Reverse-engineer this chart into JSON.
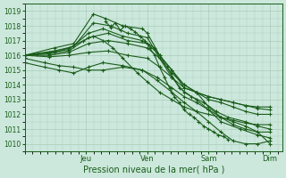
{
  "xlabel": "Pression niveau de la mer( hPa )",
  "bg_color": "#cce8dc",
  "grid_color": "#aaccbb",
  "line_color": "#1a5c1a",
  "ylim": [
    1009.5,
    1019.5
  ],
  "xlim": [
    0.0,
    1.05
  ],
  "yticks": [
    1010,
    1011,
    1012,
    1013,
    1014,
    1015,
    1016,
    1017,
    1018,
    1019
  ],
  "day_labels": [
    "Jeu",
    "Ven",
    "Sam",
    "Dim"
  ],
  "day_positions": [
    0.25,
    0.5,
    0.75,
    1.0
  ],
  "members": [
    {
      "pts": [
        [
          0.0,
          1016.0
        ],
        [
          0.12,
          1016.5
        ],
        [
          0.2,
          1016.8
        ],
        [
          0.28,
          1018.8
        ],
        [
          0.33,
          1018.5
        ],
        [
          0.4,
          1018.0
        ],
        [
          0.48,
          1017.8
        ],
        [
          0.5,
          1017.5
        ],
        [
          0.55,
          1016.0
        ],
        [
          0.6,
          1015.0
        ],
        [
          0.65,
          1013.8
        ],
        [
          0.7,
          1013.5
        ],
        [
          0.75,
          1012.5
        ],
        [
          0.8,
          1011.8
        ],
        [
          0.85,
          1011.5
        ],
        [
          0.9,
          1011.2
        ],
        [
          0.95,
          1010.8
        ],
        [
          1.0,
          1010.0
        ]
      ]
    },
    {
      "pts": [
        [
          0.0,
          1016.0
        ],
        [
          0.12,
          1016.3
        ],
        [
          0.2,
          1016.6
        ],
        [
          0.28,
          1018.2
        ],
        [
          0.35,
          1018.0
        ],
        [
          0.42,
          1017.5
        ],
        [
          0.5,
          1017.2
        ],
        [
          0.55,
          1015.8
        ],
        [
          0.6,
          1014.5
        ],
        [
          0.65,
          1013.5
        ],
        [
          0.7,
          1013.0
        ],
        [
          0.75,
          1012.3
        ],
        [
          0.8,
          1011.5
        ],
        [
          0.88,
          1011.0
        ],
        [
          0.95,
          1010.6
        ],
        [
          1.0,
          1010.4
        ]
      ]
    },
    {
      "pts": [
        [
          0.0,
          1016.0
        ],
        [
          0.1,
          1016.2
        ],
        [
          0.18,
          1016.4
        ],
        [
          0.26,
          1017.5
        ],
        [
          0.32,
          1017.8
        ],
        [
          0.4,
          1017.3
        ],
        [
          0.48,
          1017.0
        ],
        [
          0.53,
          1016.5
        ],
        [
          0.58,
          1015.2
        ],
        [
          0.63,
          1013.8
        ],
        [
          0.68,
          1013.2
        ],
        [
          0.73,
          1012.8
        ],
        [
          0.78,
          1012.2
        ],
        [
          0.83,
          1011.8
        ],
        [
          0.9,
          1011.5
        ],
        [
          0.95,
          1011.2
        ],
        [
          1.0,
          1011.0
        ]
      ]
    },
    {
      "pts": [
        [
          0.0,
          1016.0
        ],
        [
          0.1,
          1016.1
        ],
        [
          0.18,
          1016.3
        ],
        [
          0.26,
          1017.2
        ],
        [
          0.34,
          1017.5
        ],
        [
          0.42,
          1017.0
        ],
        [
          0.5,
          1016.8
        ],
        [
          0.55,
          1016.0
        ],
        [
          0.6,
          1015.0
        ],
        [
          0.65,
          1014.0
        ],
        [
          0.7,
          1013.5
        ],
        [
          0.75,
          1013.0
        ],
        [
          0.8,
          1012.8
        ],
        [
          0.85,
          1012.5
        ],
        [
          0.9,
          1012.2
        ],
        [
          0.95,
          1012.0
        ],
        [
          1.0,
          1012.0
        ]
      ]
    },
    {
      "pts": [
        [
          0.0,
          1016.0
        ],
        [
          0.1,
          1016.0
        ],
        [
          0.18,
          1016.2
        ],
        [
          0.26,
          1016.8
        ],
        [
          0.34,
          1017.0
        ],
        [
          0.42,
          1016.8
        ],
        [
          0.5,
          1016.5
        ],
        [
          0.55,
          1015.8
        ],
        [
          0.6,
          1014.8
        ],
        [
          0.65,
          1014.0
        ],
        [
          0.7,
          1013.5
        ],
        [
          0.75,
          1013.2
        ],
        [
          0.8,
          1013.0
        ],
        [
          0.85,
          1012.8
        ],
        [
          0.9,
          1012.6
        ],
        [
          0.95,
          1012.4
        ],
        [
          1.0,
          1012.3
        ]
      ]
    },
    {
      "pts": [
        [
          0.0,
          1016.0
        ],
        [
          0.1,
          1015.9
        ],
        [
          0.18,
          1016.0
        ],
        [
          0.26,
          1016.2
        ],
        [
          0.34,
          1016.3
        ],
        [
          0.42,
          1016.0
        ],
        [
          0.5,
          1015.8
        ],
        [
          0.55,
          1015.2
        ],
        [
          0.6,
          1014.5
        ],
        [
          0.65,
          1013.8
        ],
        [
          0.7,
          1013.5
        ],
        [
          0.75,
          1013.2
        ],
        [
          0.8,
          1013.0
        ],
        [
          0.85,
          1012.8
        ],
        [
          0.9,
          1012.6
        ],
        [
          0.95,
          1012.5
        ],
        [
          1.0,
          1012.5
        ]
      ]
    },
    {
      "pts": [
        [
          0.0,
          1015.8
        ],
        [
          0.08,
          1015.5
        ],
        [
          0.14,
          1015.3
        ],
        [
          0.2,
          1015.2
        ],
        [
          0.26,
          1015.0
        ],
        [
          0.32,
          1015.0
        ],
        [
          0.4,
          1015.2
        ],
        [
          0.48,
          1015.0
        ],
        [
          0.54,
          1014.5
        ],
        [
          0.6,
          1013.8
        ],
        [
          0.65,
          1013.2
        ],
        [
          0.7,
          1012.8
        ],
        [
          0.75,
          1012.3
        ],
        [
          0.8,
          1011.8
        ],
        [
          0.85,
          1011.3
        ],
        [
          0.9,
          1011.0
        ],
        [
          0.95,
          1010.8
        ],
        [
          1.0,
          1010.8
        ]
      ]
    },
    {
      "pts": [
        [
          0.0,
          1015.5
        ],
        [
          0.08,
          1015.2
        ],
        [
          0.14,
          1015.0
        ],
        [
          0.2,
          1014.8
        ],
        [
          0.26,
          1015.2
        ],
        [
          0.32,
          1015.5
        ],
        [
          0.4,
          1015.3
        ],
        [
          0.48,
          1015.0
        ],
        [
          0.54,
          1014.3
        ],
        [
          0.6,
          1013.5
        ],
        [
          0.65,
          1012.8
        ],
        [
          0.7,
          1012.2
        ],
        [
          0.75,
          1011.5
        ],
        [
          0.8,
          1010.8
        ],
        [
          0.85,
          1010.2
        ],
        [
          0.9,
          1010.0
        ],
        [
          0.95,
          1010.0
        ],
        [
          1.0,
          1010.2
        ]
      ]
    },
    {
      "pts": [
        [
          0.0,
          1016.0
        ],
        [
          0.05,
          1016.1
        ],
        [
          0.12,
          1016.2
        ],
        [
          0.18,
          1016.5
        ],
        [
          0.24,
          1017.0
        ],
        [
          0.28,
          1017.3
        ],
        [
          0.32,
          1017.0
        ],
        [
          0.36,
          1016.5
        ],
        [
          0.4,
          1015.8
        ],
        [
          0.46,
          1014.8
        ],
        [
          0.5,
          1014.2
        ],
        [
          0.55,
          1013.5
        ],
        [
          0.6,
          1013.0
        ],
        [
          0.65,
          1012.5
        ],
        [
          0.7,
          1012.2
        ],
        [
          0.75,
          1012.0
        ],
        [
          0.8,
          1011.8
        ],
        [
          0.85,
          1011.6
        ],
        [
          0.9,
          1011.4
        ],
        [
          0.95,
          1011.3
        ],
        [
          1.0,
          1011.3
        ]
      ]
    }
  ],
  "noisy_line": {
    "x": [
      0.33,
      0.35,
      0.37,
      0.39,
      0.41,
      0.43,
      0.45,
      0.47,
      0.49,
      0.51,
      0.53,
      0.55,
      0.57,
      0.59,
      0.61,
      0.63,
      0.65,
      0.67,
      0.69,
      0.71,
      0.73,
      0.75,
      0.77,
      0.79,
      0.81,
      0.83
    ],
    "y": [
      1018.3,
      1017.9,
      1018.2,
      1017.7,
      1018.0,
      1017.8,
      1017.6,
      1017.3,
      1017.0,
      1016.5,
      1016.0,
      1015.2,
      1014.5,
      1013.8,
      1013.2,
      1012.8,
      1012.3,
      1012.0,
      1011.8,
      1011.5,
      1011.2,
      1011.0,
      1010.8,
      1010.6,
      1010.5,
      1010.3
    ]
  }
}
